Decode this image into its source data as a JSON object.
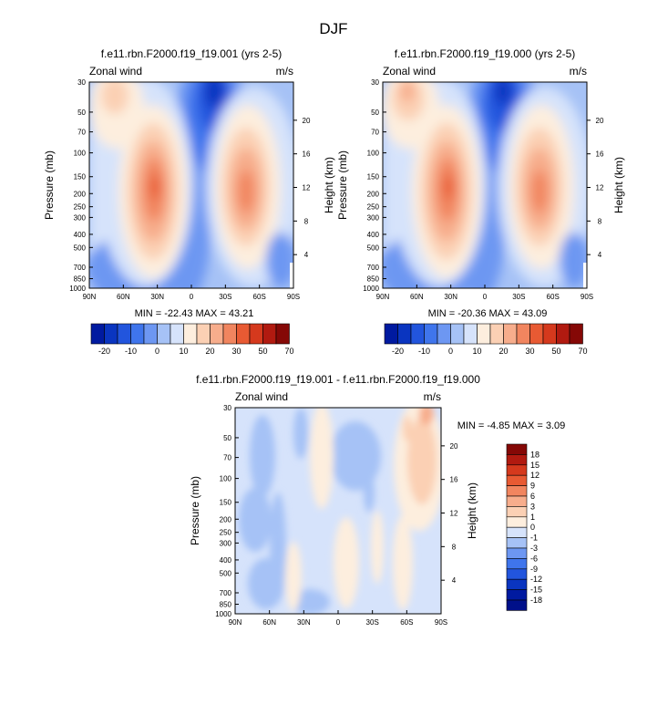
{
  "figure": {
    "title": "DJF"
  },
  "chart_data": [
    {
      "type": "heatmap",
      "title": "f.e11.rbn.F2000.f19_f19.001 (yrs 2-5)",
      "left_label": "Zonal wind",
      "right_label": "m/s",
      "ylabel": "Pressure (mb)",
      "ylabel_right": "Height (km)",
      "x_ticks": [
        "90N",
        "60N",
        "30N",
        "0",
        "30S",
        "60S",
        "90S"
      ],
      "y_ticks": [
        "30",
        "50",
        "70",
        "100",
        "150",
        "200",
        "250",
        "300",
        "400",
        "500",
        "700",
        "850",
        "1000"
      ],
      "height_ticks": [
        "20",
        "16",
        "12",
        "8",
        "4"
      ],
      "stats": "MIN = -22.43  MAX = 43.21",
      "colorbar_labels": [
        "-20",
        "-10",
        "0",
        "10",
        "20",
        "30",
        "50",
        "70"
      ],
      "colorbar_colors": [
        "#001aa0",
        "#0a35c0",
        "#2255dd",
        "#3f75ec",
        "#6d97f2",
        "#a6c2f6",
        "#d6e3fb",
        "#fdeede",
        "#fbd0b4",
        "#f7ad8c",
        "#f1855f",
        "#e85a33",
        "#d5391d",
        "#b11a10",
        "#850806"
      ]
    },
    {
      "type": "heatmap",
      "title": "f.e11.rbn.F2000.f19_f19.000 (yrs 2-5)",
      "left_label": "Zonal wind",
      "right_label": "m/s",
      "ylabel": "Pressure (mb)",
      "ylabel_right": "Height (km)",
      "x_ticks": [
        "90N",
        "60N",
        "30N",
        "0",
        "30S",
        "60S",
        "90S"
      ],
      "y_ticks": [
        "30",
        "50",
        "70",
        "100",
        "150",
        "200",
        "250",
        "300",
        "400",
        "500",
        "700",
        "850",
        "1000"
      ],
      "height_ticks": [
        "20",
        "16",
        "12",
        "8",
        "4"
      ],
      "stats": "MIN = -20.36  MAX = 43.09",
      "colorbar_labels": [
        "-20",
        "-10",
        "0",
        "10",
        "20",
        "30",
        "50",
        "70"
      ],
      "colorbar_colors": [
        "#001aa0",
        "#0a35c0",
        "#2255dd",
        "#3f75ec",
        "#6d97f2",
        "#a6c2f6",
        "#d6e3fb",
        "#fdeede",
        "#fbd0b4",
        "#f7ad8c",
        "#f1855f",
        "#e85a33",
        "#d5391d",
        "#b11a10",
        "#850806"
      ]
    },
    {
      "type": "heatmap",
      "title": "f.e11.rbn.F2000.f19_f19.001 - f.e11.rbn.F2000.f19_f19.000",
      "left_label": "Zonal wind",
      "right_label": "m/s",
      "ylabel": "Pressure (mb)",
      "ylabel_right": "Height (km)",
      "x_ticks": [
        "90N",
        "60N",
        "30N",
        "0",
        "30S",
        "60S",
        "90S"
      ],
      "y_ticks": [
        "30",
        "50",
        "70",
        "100",
        "150",
        "200",
        "250",
        "300",
        "400",
        "500",
        "700",
        "850",
        "1000"
      ],
      "height_ticks": [
        "20",
        "16",
        "12",
        "8",
        "4"
      ],
      "stats": "MIN = -4.85  MAX =  3.09",
      "colorbar_labels": [
        "18",
        "15",
        "12",
        "9",
        "6",
        "3",
        "1",
        "0",
        "-1",
        "-3",
        "-6",
        "-9",
        "-12",
        "-15",
        "-18"
      ],
      "colorbar_colors": [
        "#850806",
        "#b11a10",
        "#d5391d",
        "#e85a33",
        "#f1855f",
        "#f7ad8c",
        "#fbd0b4",
        "#fdeede",
        "#d6e3fb",
        "#a6c2f6",
        "#6d97f2",
        "#3f75ec",
        "#2255dd",
        "#0a35c0",
        "#001aa0",
        "#00108a"
      ]
    }
  ]
}
